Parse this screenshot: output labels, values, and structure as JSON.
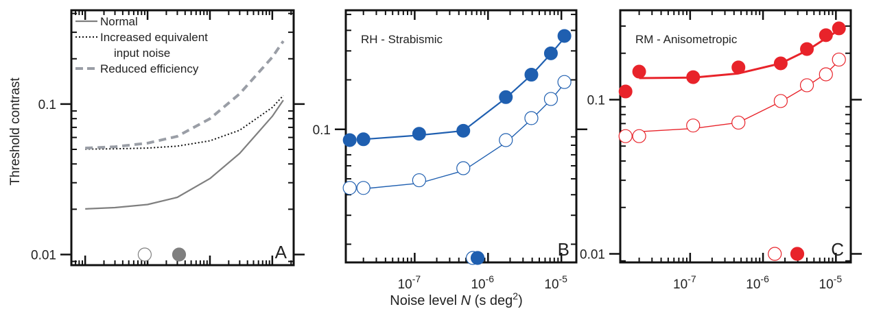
{
  "figure": {
    "ylabel": "Threshold contrast",
    "xlabel_prefix": "Noise level ",
    "xlabel_var": "N",
    "xlabel_unit": " (s deg",
    "xlabel_exp": "2",
    "xlabel_close": ")"
  },
  "colors": {
    "gray": "#7f7f7f",
    "blue": "#1f5fb0",
    "red": "#e8232a",
    "frame": "#111111"
  },
  "chart_data": [
    {
      "panel": "A",
      "type": "line",
      "panel_label": "A",
      "yscale": "log",
      "xscale": "log",
      "ylim": [
        0.0085,
        0.42
      ],
      "xlim": [
        6e-09,
        2.2e-05
      ],
      "y_ticks": [
        {
          "value": 0.01,
          "label": "0.01"
        },
        {
          "value": 0.1,
          "label": "0.1"
        }
      ],
      "x_tick_labels_shown": false,
      "legend": {
        "placement": "top-left",
        "entries": [
          {
            "style": "solid-gray",
            "label": "Normal"
          },
          {
            "style": "dotted-black",
            "label": "Increased equivalent"
          },
          {
            "style": "none",
            "label": "input noise"
          },
          {
            "style": "dashed-gray",
            "label": "Reduced efficiency"
          }
        ]
      },
      "series": [
        {
          "name": "Normal",
          "style": "solid-gray",
          "x": [
            1e-08,
            3e-08,
            1e-07,
            3e-07,
            1e-06,
            3e-06,
            1e-05,
            1.5e-05
          ],
          "y": [
            0.0201,
            0.0205,
            0.0215,
            0.024,
            0.032,
            0.047,
            0.083,
            0.106
          ]
        },
        {
          "name": "Increased equivalent input noise",
          "style": "dotted-black",
          "x": [
            1e-08,
            3e-08,
            1e-07,
            3e-07,
            1e-06,
            3e-06,
            1e-05,
            1.5e-05
          ],
          "y": [
            0.0502,
            0.0504,
            0.051,
            0.0525,
            0.057,
            0.067,
            0.095,
            0.114
          ]
        },
        {
          "name": "Reduced efficiency",
          "style": "dashed-gray",
          "x": [
            1e-08,
            3e-08,
            1e-07,
            3e-07,
            1e-06,
            3e-06,
            1e-05,
            1.5e-05
          ],
          "y": [
            0.051,
            0.052,
            0.055,
            0.061,
            0.08,
            0.117,
            0.205,
            0.262
          ]
        }
      ],
      "markers": [
        {
          "filled": false,
          "color": "gray",
          "x": 9e-08,
          "y": 0.01
        },
        {
          "filled": true,
          "color": "gray",
          "x": 3.2e-07,
          "y": 0.01
        }
      ]
    },
    {
      "panel": "B",
      "type": "scatter",
      "title": "RH - Strabismic",
      "panel_label": "B",
      "yscale": "log",
      "xscale": "log",
      "ylim": [
        0.0155,
        0.53
      ],
      "xlim": [
        1.15e-08,
        1.6e-05
      ],
      "y_ticks": [
        {
          "value": 0.1,
          "label": "0.1"
        }
      ],
      "x_ticks": [
        {
          "value": 1e-07,
          "base": "10",
          "exp": "-7"
        },
        {
          "value": 1e-06,
          "base": "10",
          "exp": "-6"
        },
        {
          "value": 1e-05,
          "base": "10",
          "exp": "-5"
        }
      ],
      "series": [
        {
          "name": "",
          "filled": true,
          "color": "blue",
          "x": [
            1.3e-08,
            2e-08,
            1.15e-07,
            4.6e-07,
            1.75e-06,
            3.9e-06,
            7.2e-06,
            1.1e-05
          ],
          "y": [
            0.086,
            0.087,
            0.094,
            0.098,
            0.157,
            0.215,
            0.29,
            0.37
          ]
        },
        {
          "name": "",
          "filled": false,
          "color": "blue",
          "x": [
            1.3e-08,
            2e-08,
            1.15e-07,
            4.6e-07,
            1.75e-06,
            3.9e-06,
            7.2e-06,
            1.1e-05
          ],
          "y": [
            0.044,
            0.044,
            0.049,
            0.058,
            0.086,
            0.117,
            0.153,
            0.194
          ]
        }
      ],
      "fits": [
        {
          "color": "blue",
          "width": 2.2,
          "x": [
            2e-08,
            1.15e-07,
            4.6e-07,
            1.75e-06,
            3.9e-06,
            7.2e-06,
            1.1e-05
          ],
          "y": [
            0.087,
            0.092,
            0.098,
            0.155,
            0.214,
            0.288,
            0.36
          ]
        },
        {
          "color": "blue",
          "width": 1.4,
          "x": [
            2e-08,
            1.15e-07,
            4.6e-07,
            1.75e-06,
            3.9e-06,
            7.2e-06,
            1.1e-05
          ],
          "y": [
            0.0435,
            0.047,
            0.056,
            0.083,
            0.115,
            0.151,
            0.19
          ]
        }
      ],
      "markers": [
        {
          "filled": false,
          "color": "blue",
          "x": 6.2e-07,
          "y": 0.0165
        },
        {
          "filled": true,
          "color": "blue",
          "x": 7.2e-07,
          "y": 0.0165
        }
      ]
    },
    {
      "panel": "C",
      "type": "scatter",
      "title": "RM - Anisometropic",
      "panel_label": "C",
      "yscale": "log",
      "xscale": "log",
      "ylim": [
        0.0088,
        0.38
      ],
      "xlim": [
        1.1e-08,
        1.6e-05
      ],
      "y_ticks": [
        {
          "value": 0.01,
          "label": "0.01"
        },
        {
          "value": 0.1,
          "label": "0.1"
        }
      ],
      "x_ticks": [
        {
          "value": 1e-07,
          "base": "10",
          "exp": "-7"
        },
        {
          "value": 1e-06,
          "base": "10",
          "exp": "-6"
        },
        {
          "value": 1e-05,
          "base": "10",
          "exp": "-5"
        }
      ],
      "series": [
        {
          "name": "",
          "filled": true,
          "color": "red",
          "x": [
            1.3e-08,
            2e-08,
            1.1e-07,
            4.6e-07,
            1.75e-06,
            4e-06,
            7.3e-06,
            1.1e-05
          ],
          "y": [
            0.113,
            0.152,
            0.14,
            0.162,
            0.172,
            0.213,
            0.262,
            0.29
          ]
        },
        {
          "name": "",
          "filled": false,
          "color": "red",
          "x": [
            1.3e-08,
            2e-08,
            1.1e-07,
            4.6e-07,
            1.75e-06,
            4e-06,
            7.3e-06,
            1.1e-05
          ],
          "y": [
            0.058,
            0.058,
            0.068,
            0.071,
            0.098,
            0.124,
            0.146,
            0.182
          ]
        }
      ],
      "fits": [
        {
          "color": "red",
          "width": 3,
          "x": [
            2e-08,
            1.1e-07,
            4.6e-07,
            1.75e-06,
            4e-06,
            7.3e-06,
            1.1e-05
          ],
          "y": [
            0.138,
            0.139,
            0.148,
            0.172,
            0.208,
            0.25,
            0.283
          ]
        },
        {
          "color": "red",
          "width": 1.4,
          "x": [
            2e-08,
            1.1e-07,
            4.6e-07,
            1.75e-06,
            4e-06,
            7.3e-06,
            1.1e-05
          ],
          "y": [
            0.062,
            0.065,
            0.071,
            0.097,
            0.122,
            0.148,
            0.178
          ]
        }
      ],
      "markers": [
        {
          "filled": false,
          "color": "red",
          "x": 1.45e-06,
          "y": 0.01
        },
        {
          "filled": true,
          "color": "red",
          "x": 2.95e-06,
          "y": 0.01
        }
      ]
    }
  ]
}
